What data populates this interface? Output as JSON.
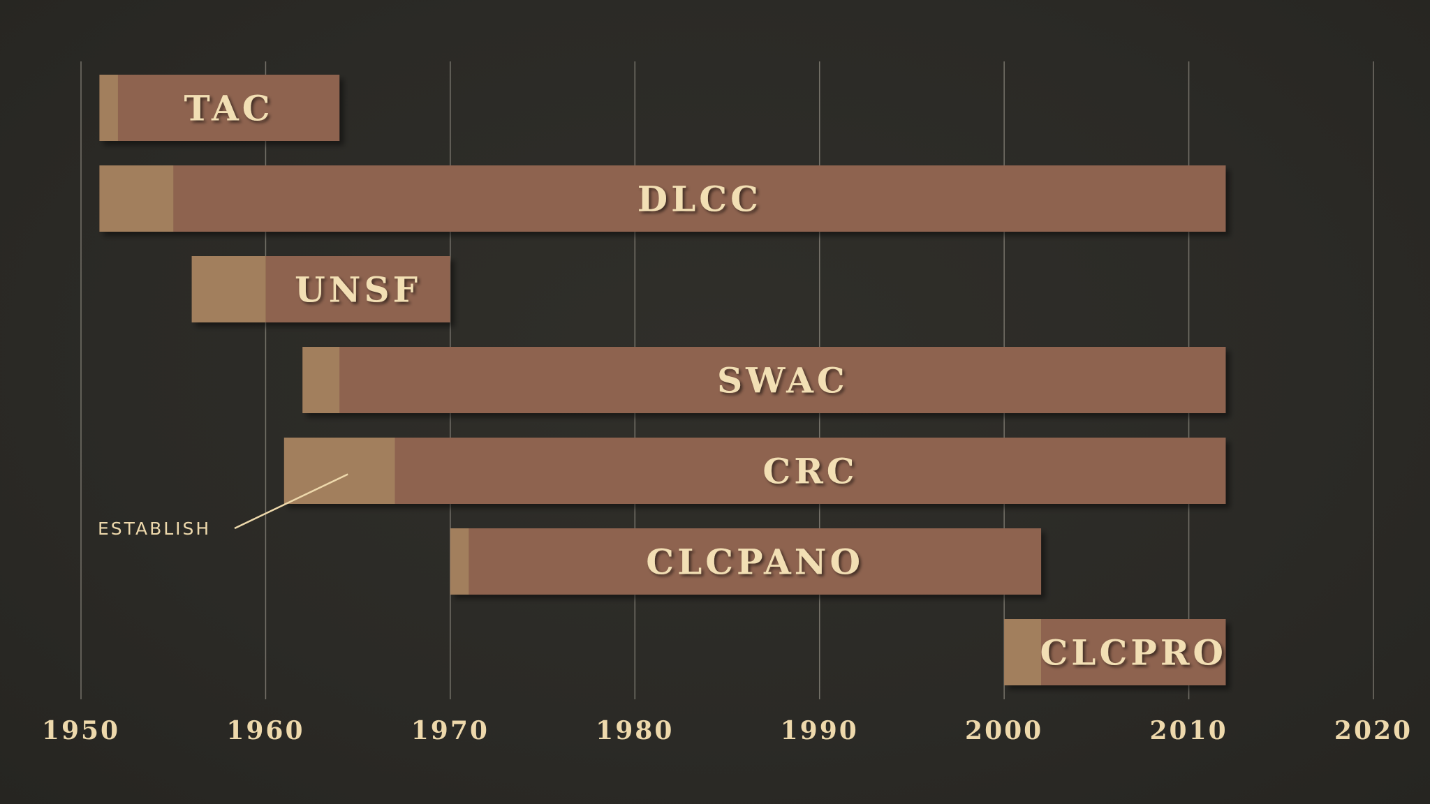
{
  "chart_data": {
    "type": "bar",
    "orientation": "horizontal-timeline",
    "title": "",
    "xlabel": "",
    "ylabel": "",
    "xlim": [
      1950,
      2020
    ],
    "x_ticks": [
      "1950",
      "1960",
      "1970",
      "1980",
      "1990",
      "2000",
      "2010",
      "2020"
    ],
    "grid": true,
    "series": [
      {
        "name": "TAC",
        "start": 1951,
        "establish_end": 1952,
        "end": 1964
      },
      {
        "name": "DLCC",
        "start": 1951,
        "establish_end": 1955,
        "end": 2012
      },
      {
        "name": "UNSF",
        "start": 1956,
        "establish_end": 1960,
        "end": 1970
      },
      {
        "name": "SWAC",
        "start": 1962,
        "establish_end": 1964,
        "end": 2012
      },
      {
        "name": "CRC",
        "start": 1961,
        "establish_end": 1967,
        "end": 2012
      },
      {
        "name": "CLCPANO",
        "start": 1970,
        "establish_end": 1971,
        "end": 2002
      },
      {
        "name": "CLCPRO",
        "start": 2000,
        "establish_end": 2002,
        "end": 2012
      }
    ],
    "annotation": {
      "text": "ESTABLISH",
      "target_series": "CRC"
    },
    "colors": {
      "background": "#2b2a26",
      "bar": "#8e6350",
      "establish": "#a27f5d",
      "text": "#eed9ac",
      "grid": "#8e8a80"
    }
  }
}
